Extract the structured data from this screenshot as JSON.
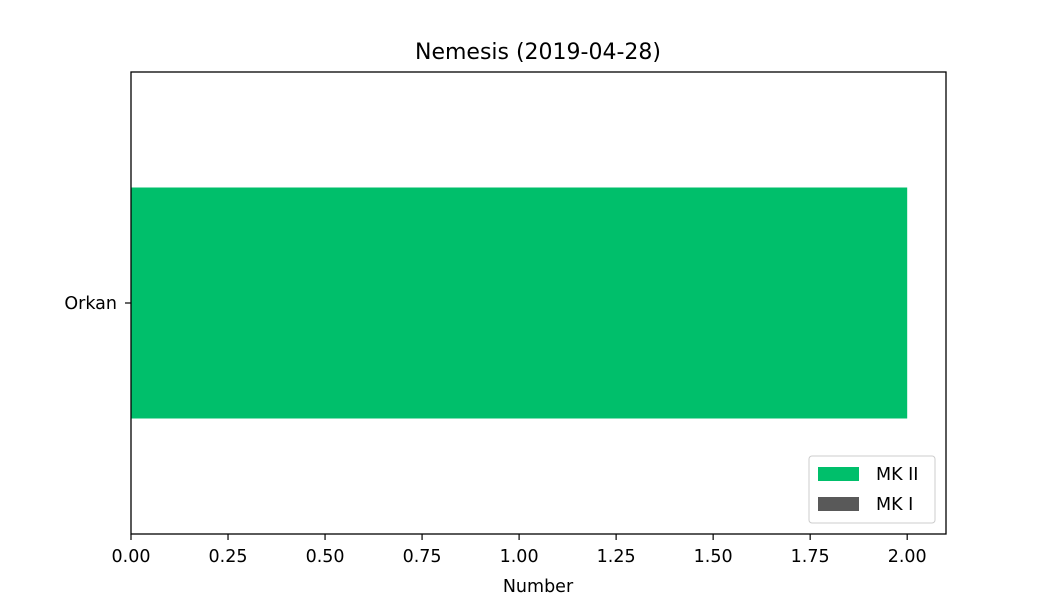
{
  "chart_data": {
    "type": "bar",
    "orientation": "horizontal",
    "stacked": true,
    "title": "Nemesis (2019-04-28)",
    "xlabel": "Number",
    "ylabel": "",
    "categories": [
      "Orkan"
    ],
    "series": [
      {
        "name": "MK II",
        "values": [
          2
        ],
        "color": "#00bf6b"
      },
      {
        "name": "MK I",
        "values": [
          0
        ],
        "color": "#595959"
      }
    ],
    "xlim": [
      0,
      2.1
    ],
    "xticks": [
      0,
      0.25,
      0.5,
      0.75,
      1.0,
      1.25,
      1.5,
      1.75,
      2.0
    ],
    "xtick_labels": [
      "0.00",
      "0.25",
      "0.50",
      "0.75",
      "1.00",
      "1.25",
      "1.50",
      "1.75",
      "2.00"
    ],
    "grid": false,
    "legend_position": "bottom-right"
  }
}
